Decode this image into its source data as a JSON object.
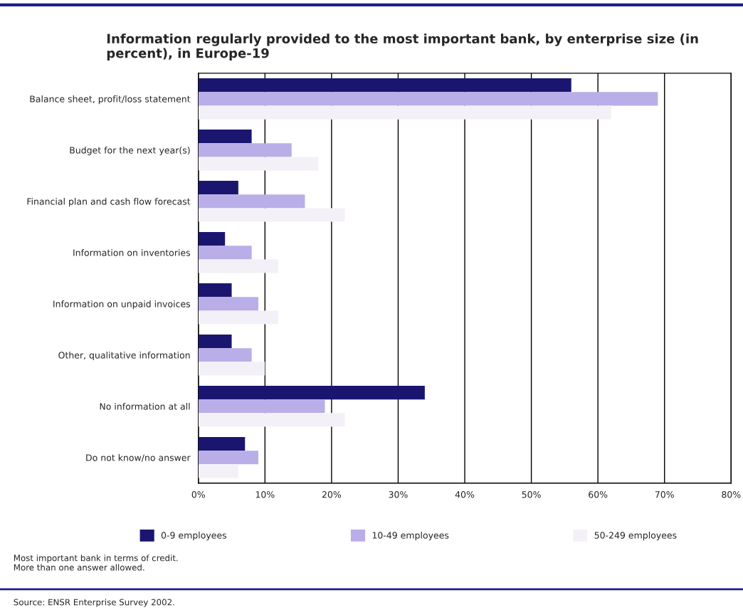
{
  "chart_data": {
    "type": "bar",
    "orientation": "horizontal",
    "title": "Information regularly provided to the most important bank, by enterprise size (in percent), in Europe-19",
    "categories": [
      "Balance sheet, profit/loss statement",
      "Budget for the next year(s)",
      "Financial plan and cash flow forecast",
      "Information on inventories",
      "Information on unpaid invoices",
      "Other, qualitative information",
      "No information at all",
      "Do not know/no answer"
    ],
    "series": [
      {
        "name": "0-9 employees",
        "color": "#1a1670",
        "values": [
          56,
          8,
          6,
          4,
          5,
          5,
          34,
          7
        ]
      },
      {
        "name": "10-49 employees",
        "color": "#b9aee8",
        "values": [
          69,
          14,
          16,
          8,
          9,
          8,
          19,
          9
        ]
      },
      {
        "name": "50-249 employees",
        "color": "#f4f0f8",
        "values": [
          62,
          18,
          22,
          12,
          12,
          10,
          22,
          6
        ]
      }
    ],
    "xlim": [
      0,
      80
    ],
    "xticks": [
      {
        "value": 0,
        "label": "0%"
      },
      {
        "value": 10,
        "label": "10%"
      },
      {
        "value": 20,
        "label": "20%"
      },
      {
        "value": 30,
        "label": "30%"
      },
      {
        "value": 40,
        "label": "40%"
      },
      {
        "value": 50,
        "label": "50%"
      },
      {
        "value": 60,
        "label": "60%"
      },
      {
        "value": 70,
        "label": "70%"
      },
      {
        "value": 80,
        "label": "80%"
      }
    ],
    "grid": "x",
    "legend": "bottom",
    "annotations": [
      "Most important bank in terms of credit.\nMore than one answer allowed.",
      "Source: ENSR Enterprise Survey 2002."
    ]
  }
}
